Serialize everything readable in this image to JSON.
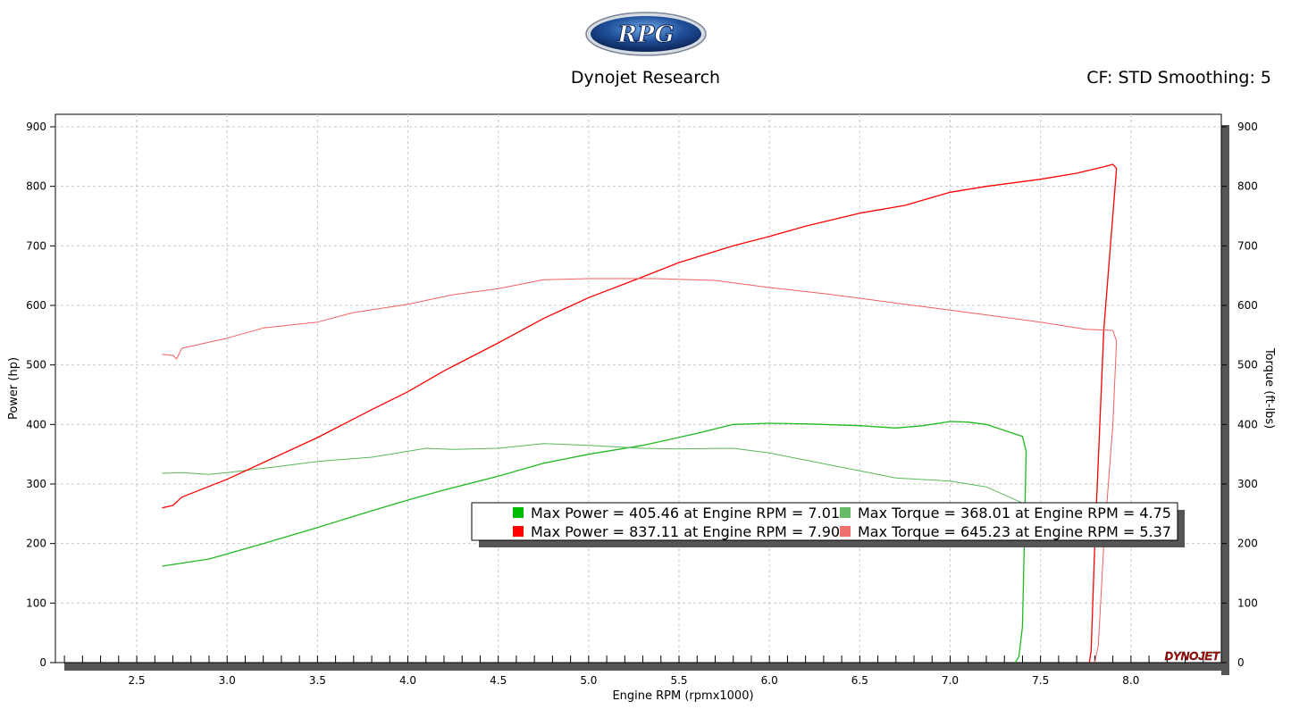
{
  "header": {
    "logo_text": "RPG",
    "app_title": "Dynojet Research",
    "cf_info": "CF: STD Smoothing: 5"
  },
  "watermark": {
    "text": "DYNOJET"
  },
  "colors": {
    "power_run1": "#22b822",
    "torque_run1": "#5ab85a",
    "power_run2": "#ff0000",
    "torque_run2": "#f06060",
    "grid": "#c8c8c8",
    "shadow": "#555555"
  },
  "legend": {
    "items": [
      {
        "text": "Max Power = 405.46 at Engine RPM = 7.01",
        "color": "#00bb00"
      },
      {
        "text": "Max Torque = 368.01 at Engine RPM = 4.75",
        "color": "#66bb66"
      },
      {
        "text": "Max Power = 837.11 at Engine RPM = 7.90",
        "color": "#ff0000"
      },
      {
        "text": "Max Torque = 645.23 at Engine RPM = 5.37",
        "color": "#f07070"
      }
    ]
  },
  "chart_data": {
    "type": "line",
    "title": "",
    "xlabel": "Engine RPM (rpmx1000)",
    "ylabel": "Power (hp)",
    "y2label": "Torque (ft-lbs)",
    "xlim": [
      2.05,
      8.5
    ],
    "ylim": [
      0,
      900
    ],
    "xticks": [
      "2.5",
      "3.0",
      "3.5",
      "4.0",
      "4.5",
      "5.0",
      "5.5",
      "6.0",
      "6.5",
      "7.0",
      "7.5",
      "8.0"
    ],
    "yticks": [
      "0",
      "100",
      "200",
      "300",
      "400",
      "500",
      "600",
      "700",
      "800",
      "900"
    ],
    "grid": true,
    "legend_position": "lower-right",
    "series": [
      {
        "key": "power_run1",
        "axis": "left",
        "points": [
          [
            2.64,
            162
          ],
          [
            2.9,
            174
          ],
          [
            3.2,
            200
          ],
          [
            3.5,
            227
          ],
          [
            3.8,
            255
          ],
          [
            4.0,
            273
          ],
          [
            4.2,
            290
          ],
          [
            4.5,
            313
          ],
          [
            4.75,
            335
          ],
          [
            5.0,
            350
          ],
          [
            5.3,
            365
          ],
          [
            5.6,
            385
          ],
          [
            5.8,
            400
          ],
          [
            6.0,
            402
          ],
          [
            6.2,
            401
          ],
          [
            6.5,
            398
          ],
          [
            6.7,
            394
          ],
          [
            6.85,
            398
          ],
          [
            7.0,
            405
          ],
          [
            7.1,
            404
          ],
          [
            7.2,
            400
          ],
          [
            7.3,
            390
          ],
          [
            7.4,
            380
          ],
          [
            7.42,
            355
          ],
          [
            7.41,
            200
          ],
          [
            7.4,
            60
          ],
          [
            7.38,
            10
          ],
          [
            7.36,
            0
          ]
        ]
      },
      {
        "key": "torque_run1",
        "axis": "right",
        "points": [
          [
            2.64,
            318
          ],
          [
            2.75,
            319
          ],
          [
            2.9,
            316
          ],
          [
            3.0,
            319
          ],
          [
            3.3,
            330
          ],
          [
            3.5,
            338
          ],
          [
            3.8,
            345
          ],
          [
            4.1,
            360
          ],
          [
            4.25,
            358
          ],
          [
            4.5,
            360
          ],
          [
            4.75,
            368
          ],
          [
            5.0,
            365
          ],
          [
            5.3,
            360
          ],
          [
            5.5,
            359
          ],
          [
            5.8,
            360
          ],
          [
            6.0,
            352
          ],
          [
            6.2,
            340
          ],
          [
            6.45,
            325
          ],
          [
            6.7,
            310
          ],
          [
            7.0,
            305
          ],
          [
            7.2,
            295
          ],
          [
            7.35,
            275
          ],
          [
            7.4,
            268
          ]
        ]
      },
      {
        "key": "power_run2",
        "axis": "left",
        "points": [
          [
            2.64,
            260
          ],
          [
            2.7,
            264
          ],
          [
            2.75,
            278
          ],
          [
            3.0,
            308
          ],
          [
            3.2,
            336
          ],
          [
            3.5,
            378
          ],
          [
            3.8,
            425
          ],
          [
            4.0,
            455
          ],
          [
            4.2,
            490
          ],
          [
            4.5,
            537
          ],
          [
            4.75,
            578
          ],
          [
            5.0,
            613
          ],
          [
            5.3,
            648
          ],
          [
            5.5,
            672
          ],
          [
            5.8,
            700
          ],
          [
            6.0,
            716
          ],
          [
            6.2,
            733
          ],
          [
            6.5,
            755
          ],
          [
            6.75,
            768
          ],
          [
            7.0,
            790
          ],
          [
            7.2,
            800
          ],
          [
            7.5,
            812
          ],
          [
            7.7,
            822
          ],
          [
            7.85,
            833
          ],
          [
            7.9,
            837
          ],
          [
            7.92,
            830
          ],
          [
            7.85,
            560
          ],
          [
            7.8,
            200
          ],
          [
            7.78,
            20
          ],
          [
            7.77,
            0
          ]
        ]
      },
      {
        "key": "torque_run2",
        "axis": "right",
        "points": [
          [
            2.64,
            518
          ],
          [
            2.7,
            516
          ],
          [
            2.72,
            510
          ],
          [
            2.75,
            528
          ],
          [
            3.0,
            545
          ],
          [
            3.2,
            562
          ],
          [
            3.5,
            572
          ],
          [
            3.7,
            588
          ],
          [
            4.0,
            602
          ],
          [
            4.25,
            618
          ],
          [
            4.5,
            628
          ],
          [
            4.75,
            643
          ],
          [
            5.0,
            645
          ],
          [
            5.37,
            645
          ],
          [
            5.7,
            642
          ],
          [
            6.0,
            630
          ],
          [
            6.3,
            620
          ],
          [
            6.5,
            612
          ],
          [
            6.75,
            602
          ],
          [
            7.0,
            592
          ],
          [
            7.25,
            582
          ],
          [
            7.5,
            572
          ],
          [
            7.75,
            560
          ],
          [
            7.9,
            558
          ],
          [
            7.92,
            540
          ],
          [
            7.9,
            400
          ],
          [
            7.85,
            200
          ],
          [
            7.82,
            30
          ],
          [
            7.8,
            0
          ]
        ]
      }
    ]
  }
}
